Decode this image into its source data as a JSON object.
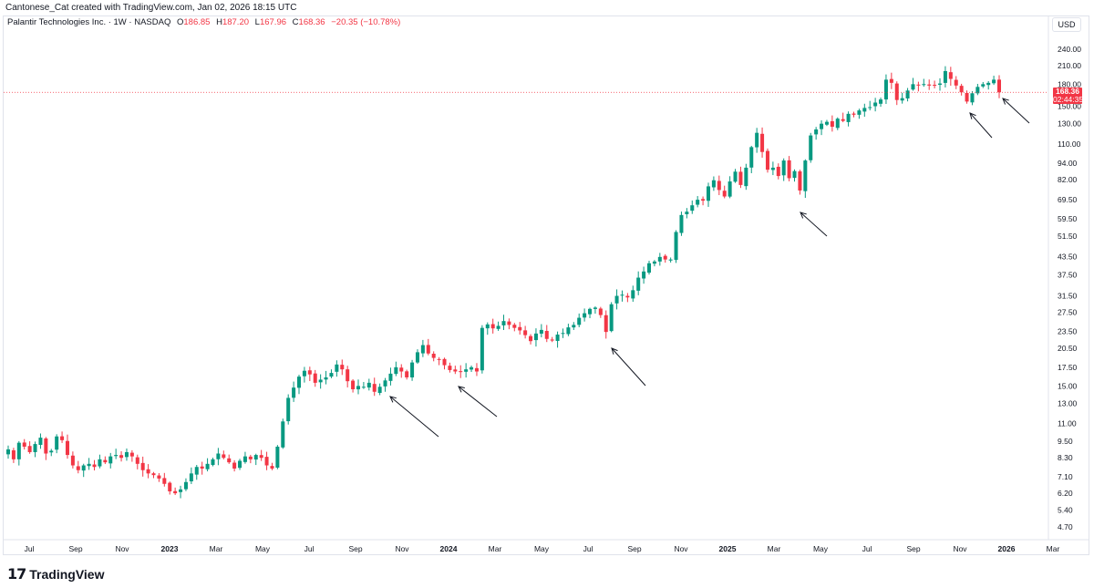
{
  "header": {
    "credit": "Cantonese_Cat created with TradingView.com, Jan 02, 2026 18:15 UTC",
    "symbol": "Palantir Technologies Inc. · 1W · NASDAQ",
    "o_label": "O",
    "o_value": "186.85",
    "h_label": "H",
    "h_value": "187.20",
    "l_label": "L",
    "l_value": "167.96",
    "c_label": "C",
    "c_value": "168.36",
    "change": "−20.35 (−10.78%)",
    "currency": "USD"
  },
  "price_label": {
    "price": "168.36",
    "countdown": "02:44:35"
  },
  "branding": {
    "logo_mark": "17",
    "name": "TradingView"
  },
  "colors": {
    "up": "#089981",
    "down": "#f23645",
    "arrow": "#131722",
    "grid": "#e0e3eb"
  },
  "chart_data": {
    "type": "candlestick",
    "scale": "log",
    "interval": "1W",
    "last_price": 168.36,
    "y_ticks": [
      "4.70",
      "5.40",
      "6.20",
      "7.10",
      "8.30",
      "9.50",
      "11.00",
      "13.00",
      "15.00",
      "17.50",
      "20.50",
      "23.50",
      "27.50",
      "31.50",
      "37.50",
      "43.50",
      "51.50",
      "59.50",
      "69.50",
      "82.00",
      "94.00",
      "110.00",
      "130.00",
      "150.00",
      "180.00",
      "210.00",
      "240.00"
    ],
    "x_ticks": [
      {
        "label": "Jul",
        "bold": false
      },
      {
        "label": "Sep",
        "bold": false
      },
      {
        "label": "Nov",
        "bold": false
      },
      {
        "label": "2023",
        "bold": true
      },
      {
        "label": "Mar",
        "bold": false
      },
      {
        "label": "May",
        "bold": false
      },
      {
        "label": "Jul",
        "bold": false
      },
      {
        "label": "Sep",
        "bold": false
      },
      {
        "label": "Nov",
        "bold": false
      },
      {
        "label": "2024",
        "bold": true
      },
      {
        "label": "Mar",
        "bold": false
      },
      {
        "label": "May",
        "bold": false
      },
      {
        "label": "Jul",
        "bold": false
      },
      {
        "label": "Sep",
        "bold": false
      },
      {
        "label": "Nov",
        "bold": false
      },
      {
        "label": "2025",
        "bold": true
      },
      {
        "label": "Mar",
        "bold": false
      },
      {
        "label": "May",
        "bold": false
      },
      {
        "label": "Jul",
        "bold": false
      },
      {
        "label": "Sep",
        "bold": false
      },
      {
        "label": "Nov",
        "bold": false
      },
      {
        "label": "2026",
        "bold": true
      },
      {
        "label": "Mar",
        "bold": false
      }
    ],
    "closes": [
      8.9,
      8.2,
      9.4,
      9.1,
      8.7,
      9.3,
      9.8,
      8.6,
      8.8,
      9.9,
      9.6,
      8.5,
      7.8,
      7.5,
      7.8,
      7.9,
      7.7,
      8.2,
      8.0,
      8.4,
      8.5,
      8.3,
      8.7,
      8.4,
      7.9,
      7.5,
      7.3,
      7.2,
      7.0,
      6.7,
      6.3,
      6.2,
      6.4,
      6.8,
      7.3,
      7.7,
      7.6,
      7.9,
      8.2,
      8.6,
      8.3,
      8.0,
      7.6,
      8.1,
      8.4,
      8.2,
      8.5,
      8.3,
      7.8,
      7.6,
      9.1,
      11.2,
      13.6,
      14.8,
      16.2,
      17.0,
      16.5,
      15.4,
      15.8,
      16.1,
      16.7,
      17.9,
      17.2,
      15.6,
      14.6,
      15.0,
      14.9,
      15.4,
      14.3,
      14.9,
      15.7,
      16.6,
      17.5,
      16.9,
      16.1,
      18.2,
      19.8,
      21.0,
      19.6,
      18.9,
      18.6,
      17.8,
      17.1,
      16.9,
      16.9,
      17.2,
      17.5,
      16.9,
      24.2,
      24.9,
      24.1,
      24.6,
      25.6,
      24.8,
      24.2,
      23.7,
      22.8,
      21.7,
      23.1,
      23.8,
      22.1,
      21.8,
      22.9,
      23.2,
      24.3,
      24.8,
      26.3,
      27.3,
      28.3,
      28.6,
      26.9,
      23.4,
      29.4,
      31.5,
      31.8,
      31.1,
      33.0,
      36.6,
      38.5,
      41.2,
      41.8,
      43.4,
      42.5,
      42.5,
      53.3,
      61.3,
      63.0,
      66.4,
      69.5,
      69.0,
      77.6,
      81.6,
      75.3,
      71.4,
      80.8,
      87.6,
      78.5,
      90.5,
      107.2,
      120.6,
      103.0,
      89.0,
      90.5,
      84.5,
      96.0,
      83.0,
      88.0,
      75.0,
      96.0,
      118.0,
      124.0,
      130.0,
      132.0,
      126.8,
      135.5,
      133.0,
      141.0,
      140.0,
      145.0,
      148.0,
      149.0,
      154.7,
      158.7,
      186.8,
      182.0,
      158.0,
      160.4,
      170.8,
      180.0,
      178.0,
      180.1,
      177.9,
      178.0,
      181.0,
      200.5,
      188.0,
      178.0,
      168.3,
      156.0,
      167.0,
      176.0,
      180.0,
      182.0,
      186.8,
      168.36
    ],
    "annotations": [
      {
        "type": "arrow",
        "points_to": "2023-10 low"
      },
      {
        "type": "arrow",
        "points_to": "2024-01 low"
      },
      {
        "type": "arrow",
        "points_to": "2024-08 low"
      },
      {
        "type": "arrow",
        "points_to": "2025-04 low"
      },
      {
        "type": "arrow",
        "points_to": "2025-11 low"
      },
      {
        "type": "arrow",
        "points_to": "2026-01 current"
      }
    ]
  }
}
